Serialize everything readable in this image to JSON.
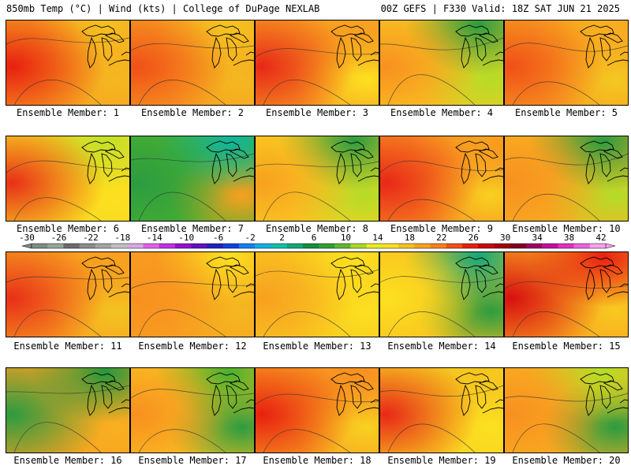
{
  "header": {
    "title_left": "850mb Temp (°C) | Wind (kts) | College of DuPage NEXLAB",
    "title_right": "00Z GEFS | F330 Valid: 18Z SAT JUN 21 2025"
  },
  "members": [
    {
      "label": "Ensemble Member: 1",
      "base": "#f8a020",
      "west": "#e82010",
      "east": "#f4b820",
      "north": "#f4c020"
    },
    {
      "label": "Ensemble Member: 2",
      "base": "#f8a020",
      "west": "#f05018",
      "east": "#f4b820",
      "north": "#f4c420"
    },
    {
      "label": "Ensemble Member: 3",
      "base": "#f8a020",
      "west": "#e82818",
      "east": "#fce020",
      "north": "#f8a020"
    },
    {
      "label": "Ensemble Member: 4",
      "base": "#f8c820",
      "west": "#f89020",
      "east": "#b4dc28",
      "north": "#2c9c40"
    },
    {
      "label": "Ensemble Member: 5",
      "base": "#f8a020",
      "west": "#f05018",
      "east": "#f4c820",
      "north": "#f8b020"
    },
    {
      "label": "Ensemble Member: 6",
      "base": "#f8d820",
      "west": "#e83018",
      "east": "#fce020",
      "north": "#c4e028"
    },
    {
      "label": "Ensemble Member: 7",
      "base": "#48b030",
      "west": "#2c9c40",
      "east": "#f8a020",
      "north": "#12b49c"
    },
    {
      "label": "Ensemble Member: 8",
      "base": "#f8d020",
      "west": "#f8a020",
      "east": "#b4dc28",
      "north": "#2c9c40"
    },
    {
      "label": "Ensemble Member: 9",
      "base": "#f89020",
      "west": "#e82818",
      "east": "#f8d020",
      "north": "#f8a020"
    },
    {
      "label": "Ensemble Member: 10",
      "base": "#f8b020",
      "west": "#f89020",
      "east": "#b4dc28",
      "north": "#2c9c40"
    },
    {
      "label": "Ensemble Member: 11",
      "base": "#f8a020",
      "west": "#e83018",
      "east": "#f4c420",
      "north": "#f8a020"
    },
    {
      "label": "Ensemble Member: 12",
      "base": "#f8a020",
      "west": "#f89020",
      "east": "#f4b820",
      "north": "#fce020"
    },
    {
      "label": "Ensemble Member: 13",
      "base": "#f8c820",
      "west": "#f8a020",
      "east": "#fce020",
      "north": "#fce020"
    },
    {
      "label": "Ensemble Member: 14",
      "base": "#f8c020",
      "west": "#fce020",
      "east": "#2c9c40",
      "north": "#12a878"
    },
    {
      "label": "Ensemble Member: 15",
      "base": "#f8a020",
      "west": "#d81010",
      "east": "#f8c820",
      "north": "#e82010"
    },
    {
      "label": "Ensemble Member: 16",
      "base": "#f8a020",
      "west": "#2c9c40",
      "east": "#f8b020",
      "north": "#24983c"
    },
    {
      "label": "Ensemble Member: 17",
      "base": "#f8c020",
      "west": "#f89020",
      "east": "#2c9c40",
      "north": "#48b030"
    },
    {
      "label": "Ensemble Member: 18",
      "base": "#f8a020",
      "west": "#e82010",
      "east": "#f8d020",
      "north": "#f89020"
    },
    {
      "label": "Ensemble Member: 19",
      "base": "#f8d020",
      "west": "#e82818",
      "east": "#fce020",
      "north": "#f4c420"
    },
    {
      "label": "Ensemble Member: 20",
      "base": "#f8b020",
      "west": "#f89020",
      "east": "#2c9c40",
      "north": "#b4dc28"
    }
  ],
  "colorbar": {
    "tick_labels": [
      "-30",
      "-26",
      "-22",
      "-18",
      "-14",
      "-10",
      "-6",
      "-2",
      "2",
      "6",
      "10",
      "14",
      "18",
      "22",
      "26",
      "30",
      "34",
      "38",
      "42"
    ],
    "colors": [
      "#7d8c80",
      "#96a49a",
      "#6c6c6c",
      "#8c8c8c",
      "#a4a4a4",
      "#c0c0c0",
      "#d8a8e0",
      "#e060e8",
      "#c030e0",
      "#9010d0",
      "#6010c0",
      "#2020c0",
      "#1040e0",
      "#1080f0",
      "#10b0e0",
      "#10c0a8",
      "#10a878",
      "#109040",
      "#30a030",
      "#60b830",
      "#a8d828",
      "#e8ec20",
      "#f8e020",
      "#f8c020",
      "#f8a020",
      "#f88018",
      "#f05018",
      "#e82010",
      "#c80808",
      "#a00010",
      "#800020",
      "#a00060",
      "#c010a0",
      "#e030c0",
      "#f060e0",
      "#f8a0f0"
    ]
  }
}
